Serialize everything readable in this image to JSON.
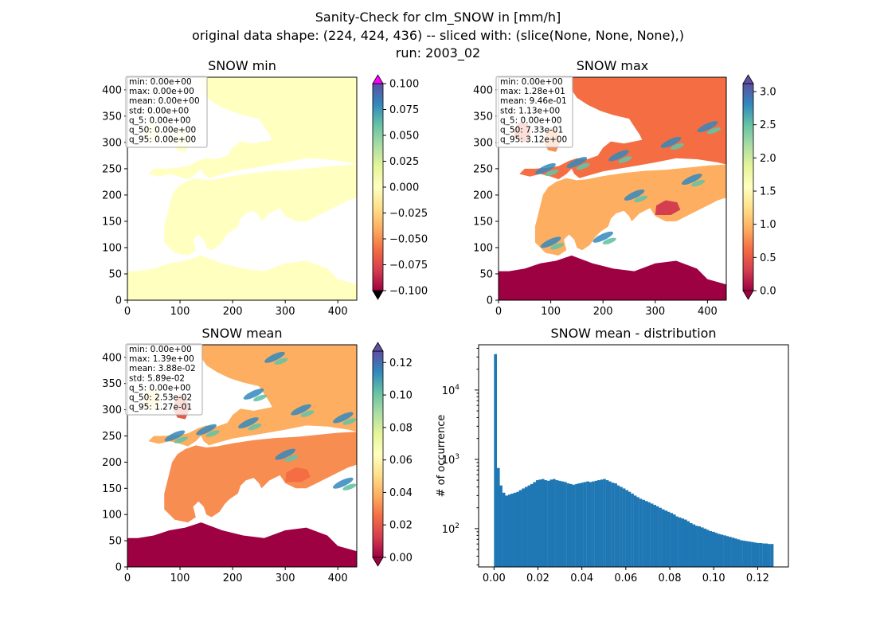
{
  "suptitle": {
    "line1": "Sanity-Check for clm_SNOW in [mm/h]",
    "line2": "original data shape: (224, 424, 436) -- sliced with: (slice(None, None, None),)",
    "line3": "run: 2003_02"
  },
  "chart_data": [
    {
      "type": "heatmap",
      "title": "SNOW min",
      "x_ticks": [
        "0",
        "100",
        "200",
        "300",
        "400"
      ],
      "y_ticks": [
        "0",
        "50",
        "100",
        "150",
        "200",
        "250",
        "300",
        "350",
        "400"
      ],
      "xlim": [
        0,
        436
      ],
      "ylim": [
        0,
        424
      ],
      "colorbar": {
        "ticks": [
          "0.100",
          "0.075",
          "0.050",
          "0.025",
          "0.000",
          "−0.025",
          "−0.050",
          "−0.075",
          "−0.100"
        ],
        "range": [
          -0.1,
          0.1
        ],
        "extend": "both",
        "colormap": "Spectral"
      },
      "stats": [
        "min: 0.00e+00",
        "max: 0.00e+00",
        "mean: 0.00e+00",
        "std: 0.00e+00",
        "q_5: 0.00e+00",
        "q_50: 0.00e+00",
        "q_95: 0.00e+00"
      ]
    },
    {
      "type": "heatmap",
      "title": "SNOW max",
      "x_ticks": [
        "0",
        "100",
        "200",
        "300",
        "400"
      ],
      "y_ticks": [
        "0",
        "50",
        "100",
        "150",
        "200",
        "250",
        "300",
        "350",
        "400"
      ],
      "xlim": [
        0,
        436
      ],
      "ylim": [
        0,
        424
      ],
      "colorbar": {
        "ticks": [
          "3.0",
          "2.5",
          "2.0",
          "1.5",
          "1.0",
          "0.5",
          "0.0"
        ],
        "range": [
          0,
          3.12
        ],
        "extend": "both",
        "colormap": "Spectral"
      },
      "stats": [
        "min: 0.00e+00",
        "max: 1.28e+01",
        "mean: 9.46e-01",
        "std: 1.13e+00",
        "q_5: 0.00e+00",
        "q_50: 7.33e-01",
        "q_95: 3.12e+00"
      ]
    },
    {
      "type": "heatmap",
      "title": "SNOW mean",
      "x_ticks": [
        "0",
        "100",
        "200",
        "300",
        "400"
      ],
      "y_ticks": [
        "0",
        "50",
        "100",
        "150",
        "200",
        "250",
        "300",
        "350",
        "400"
      ],
      "xlim": [
        0,
        436
      ],
      "ylim": [
        0,
        424
      ],
      "colorbar": {
        "ticks": [
          "0.12",
          "0.10",
          "0.08",
          "0.06",
          "0.04",
          "0.02",
          "0.00"
        ],
        "range": [
          0,
          0.127
        ],
        "extend": "both",
        "colormap": "Spectral"
      },
      "stats": [
        "min: 0.00e+00",
        "max: 1.39e+00",
        "mean: 3.88e-02",
        "std: 5.89e-02",
        "q_5: 0.00e+00",
        "q_50: 2.53e-02",
        "q_95: 1.27e-01"
      ]
    },
    {
      "type": "bar",
      "title": "SNOW mean - distribution",
      "ylabel": "# of occurrence",
      "yscale": "log",
      "x_ticks": [
        "0.00",
        "0.02",
        "0.04",
        "0.06",
        "0.08",
        "0.10",
        "0.12"
      ],
      "y_ticks": [
        "10^2",
        "10^3",
        "10^4"
      ],
      "xlim": [
        -0.007,
        0.134
      ],
      "ylim": [
        28,
        45000
      ],
      "color": "#1f77b4",
      "bins": {
        "x": [
          0.0,
          0.0013,
          0.0025,
          0.0038,
          0.0051,
          0.0064,
          0.0076,
          0.0089,
          0.0102,
          0.0114,
          0.0127,
          0.014,
          0.0153,
          0.0165,
          0.0178,
          0.0191,
          0.0203,
          0.0216,
          0.0229,
          0.0242,
          0.0254,
          0.0267,
          0.028,
          0.0292,
          0.0305,
          0.0318,
          0.0331,
          0.0343,
          0.0356,
          0.0369,
          0.0381,
          0.0394,
          0.0407,
          0.042,
          0.0432,
          0.0445,
          0.0458,
          0.047,
          0.0483,
          0.0496,
          0.0509,
          0.0521,
          0.0534,
          0.0547,
          0.0559,
          0.0572,
          0.0585,
          0.0598,
          0.061,
          0.0623,
          0.0636,
          0.0648,
          0.0661,
          0.0674,
          0.0687,
          0.0699,
          0.0712,
          0.0725,
          0.0737,
          0.075,
          0.0763,
          0.0776,
          0.0788,
          0.0801,
          0.0814,
          0.0826,
          0.0839,
          0.0852,
          0.0865,
          0.0877,
          0.089,
          0.0903,
          0.0915,
          0.0928,
          0.0941,
          0.0954,
          0.0966,
          0.0979,
          0.0992,
          0.1004,
          0.1017,
          0.103,
          0.1043,
          0.1055,
          0.1068,
          0.1081,
          0.1093,
          0.1106,
          0.1119,
          0.1132,
          0.1144,
          0.1157,
          0.117,
          0.1182,
          0.1195,
          0.1208,
          0.1221,
          0.1233,
          0.1246,
          0.1259
        ],
        "counts": [
          33000,
          750,
          420,
          330,
          300,
          310,
          320,
          330,
          340,
          360,
          380,
          400,
          420,
          440,
          470,
          500,
          510,
          520,
          500,
          490,
          510,
          520,
          500,
          490,
          480,
          470,
          450,
          440,
          430,
          440,
          450,
          460,
          470,
          480,
          470,
          480,
          490,
          500,
          510,
          520,
          500,
          480,
          460,
          450,
          420,
          400,
          380,
          360,
          340,
          320,
          300,
          285,
          270,
          260,
          250,
          240,
          230,
          220,
          210,
          200,
          190,
          182,
          175,
          168,
          160,
          150,
          145,
          140,
          135,
          128,
          120,
          115,
          110,
          108,
          104,
          100,
          96,
          92,
          90,
          87,
          84,
          82,
          80,
          78,
          76,
          74,
          72,
          70,
          68,
          67,
          66,
          65,
          64,
          63,
          62,
          62,
          61,
          61,
          60,
          60
        ]
      }
    }
  ]
}
